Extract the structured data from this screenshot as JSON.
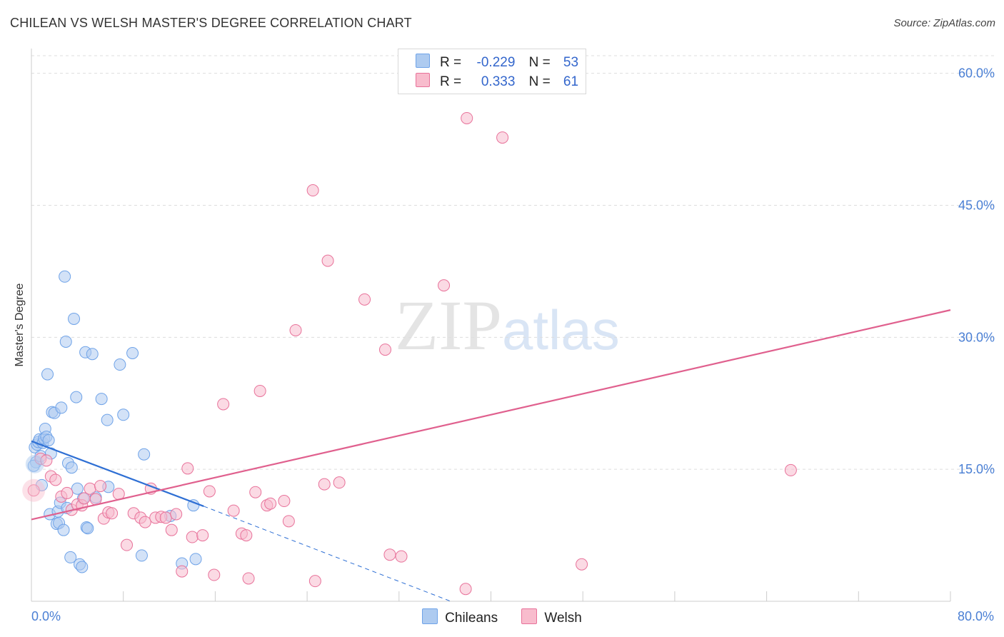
{
  "title": "CHILEAN VS WELSH MASTER'S DEGREE CORRELATION CHART",
  "source": "Source: ZipAtlas.com",
  "watermark": {
    "zip": "ZIP",
    "atlas": "atlas"
  },
  "legend": {
    "rows": [
      {
        "r_label": "R =",
        "r_value": "-0.229",
        "n_label": "N =",
        "n_value": "53",
        "color": "#aecbf0"
      },
      {
        "r_label": "R =",
        "r_value": "0.333",
        "n_label": "N =",
        "n_value": "61",
        "color": "#f8bccd"
      }
    ]
  },
  "chart_data": {
    "type": "scatter",
    "title": "CHILEAN VS WELSH MASTER'S DEGREE CORRELATION CHART",
    "xlabel": "",
    "ylabel": "Master's Degree",
    "xlim": [
      0,
      80
    ],
    "ylim": [
      0,
      62
    ],
    "x_tick_labels": [
      "0.0%",
      "80.0%"
    ],
    "y_ticks": [
      15,
      30,
      45,
      60
    ],
    "y_tick_labels": [
      "15.0%",
      "30.0%",
      "45.0%",
      "60.0%"
    ],
    "grid": true,
    "series": [
      {
        "name": "Chileans",
        "color": "#6fa3e8",
        "fill": "#aecbf0",
        "trend": {
          "x0": 0,
          "y0": 18.2,
          "x1": 15,
          "y1": 10.8,
          "dash_to_x": 36.5,
          "dash_to_y": 0
        },
        "points": [
          [
            0.3,
            17.5
          ],
          [
            0.4,
            15.8
          ],
          [
            0.5,
            17.8
          ],
          [
            0.6,
            18.1
          ],
          [
            0.7,
            18.4
          ],
          [
            0.8,
            16.5
          ],
          [
            0.9,
            13.2
          ],
          [
            1.0,
            18.0
          ],
          [
            1.1,
            18.5
          ],
          [
            1.2,
            19.6
          ],
          [
            1.3,
            18.7
          ],
          [
            1.4,
            25.8
          ],
          [
            1.5,
            18.3
          ],
          [
            1.6,
            9.9
          ],
          [
            1.7,
            16.8
          ],
          [
            1.8,
            21.5
          ],
          [
            2.0,
            21.4
          ],
          [
            2.2,
            8.8
          ],
          [
            2.3,
            10.2
          ],
          [
            2.4,
            8.9
          ],
          [
            2.5,
            11.2
          ],
          [
            2.6,
            22.0
          ],
          [
            2.8,
            8.1
          ],
          [
            2.9,
            36.9
          ],
          [
            3.0,
            29.5
          ],
          [
            3.1,
            10.6
          ],
          [
            3.2,
            15.7
          ],
          [
            3.4,
            5.0
          ],
          [
            3.5,
            15.2
          ],
          [
            3.7,
            32.1
          ],
          [
            3.9,
            23.2
          ],
          [
            4.0,
            12.8
          ],
          [
            4.2,
            4.2
          ],
          [
            4.4,
            3.9
          ],
          [
            4.5,
            11.7
          ],
          [
            4.7,
            28.3
          ],
          [
            4.8,
            8.4
          ],
          [
            4.9,
            8.3
          ],
          [
            5.3,
            28.1
          ],
          [
            5.6,
            11.8
          ],
          [
            6.1,
            23.0
          ],
          [
            6.6,
            20.6
          ],
          [
            6.7,
            13.0
          ],
          [
            7.7,
            26.9
          ],
          [
            8.0,
            21.2
          ],
          [
            8.8,
            28.2
          ],
          [
            9.6,
            5.2
          ],
          [
            9.8,
            16.7
          ],
          [
            12.1,
            9.7
          ],
          [
            13.1,
            4.3
          ],
          [
            14.1,
            10.9
          ],
          [
            14.3,
            4.8
          ],
          [
            0.2,
            15.4
          ]
        ]
      },
      {
        "name": "Welsh",
        "color": "#e8729a",
        "fill": "#f8bccd",
        "trend": {
          "x0": 0,
          "y0": 9.3,
          "x1": 80,
          "y1": 33.1
        },
        "points": [
          [
            0.2,
            12.6
          ],
          [
            0.8,
            16.2
          ],
          [
            1.3,
            16.0
          ],
          [
            1.7,
            14.2
          ],
          [
            2.1,
            13.8
          ],
          [
            2.6,
            11.9
          ],
          [
            3.1,
            12.3
          ],
          [
            3.5,
            10.4
          ],
          [
            4.0,
            11.0
          ],
          [
            4.4,
            10.9
          ],
          [
            4.6,
            11.7
          ],
          [
            5.1,
            12.8
          ],
          [
            5.6,
            11.6
          ],
          [
            6.0,
            13.1
          ],
          [
            6.3,
            9.4
          ],
          [
            6.7,
            10.1
          ],
          [
            7.0,
            10.0
          ],
          [
            7.6,
            12.2
          ],
          [
            8.3,
            6.4
          ],
          [
            8.9,
            10.0
          ],
          [
            9.5,
            9.5
          ],
          [
            9.9,
            9.0
          ],
          [
            10.4,
            12.8
          ],
          [
            10.8,
            9.5
          ],
          [
            11.3,
            9.6
          ],
          [
            11.7,
            9.5
          ],
          [
            12.2,
            8.1
          ],
          [
            12.6,
            9.9
          ],
          [
            13.1,
            3.4
          ],
          [
            13.6,
            15.1
          ],
          [
            14.0,
            7.3
          ],
          [
            14.9,
            7.5
          ],
          [
            15.5,
            12.5
          ],
          [
            15.9,
            3.0
          ],
          [
            16.7,
            22.4
          ],
          [
            17.6,
            10.3
          ],
          [
            18.3,
            7.7
          ],
          [
            18.7,
            7.5
          ],
          [
            18.9,
            2.6
          ],
          [
            19.5,
            12.4
          ],
          [
            19.9,
            23.9
          ],
          [
            20.5,
            10.9
          ],
          [
            20.8,
            11.1
          ],
          [
            22.0,
            11.4
          ],
          [
            22.4,
            9.1
          ],
          [
            23.0,
            30.8
          ],
          [
            24.5,
            46.7
          ],
          [
            24.7,
            2.3
          ],
          [
            25.5,
            13.3
          ],
          [
            25.8,
            38.7
          ],
          [
            26.8,
            13.5
          ],
          [
            29.0,
            34.3
          ],
          [
            30.8,
            28.6
          ],
          [
            31.2,
            5.3
          ],
          [
            32.2,
            5.1
          ],
          [
            35.9,
            35.9
          ],
          [
            37.8,
            1.4
          ],
          [
            37.9,
            54.9
          ],
          [
            41.0,
            52.7
          ],
          [
            47.9,
            4.2
          ],
          [
            66.1,
            14.9
          ]
        ]
      }
    ]
  },
  "bottom_legend": [
    {
      "label": "Chileans",
      "color": "#aecbf0",
      "border": "#6fa3e8"
    },
    {
      "label": "Welsh",
      "color": "#f8bccd",
      "border": "#e8729a"
    }
  ]
}
